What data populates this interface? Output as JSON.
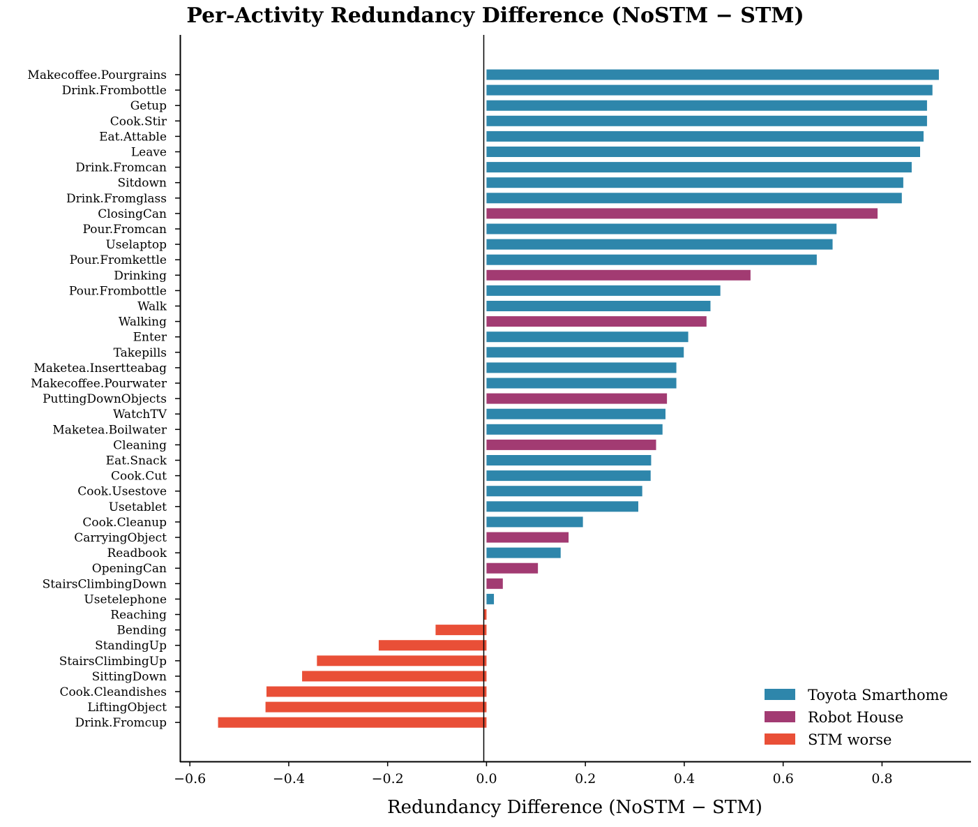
{
  "chart_data": {
    "type": "bar",
    "orientation": "horizontal",
    "title": "Per-Activity Redundancy Difference (NoSTM − STM)",
    "xlabel": "Redundancy Difference (NoSTM − STM)",
    "ylabel": "",
    "xlim": [
      -0.62,
      0.98
    ],
    "xticks": [
      -0.6,
      -0.4,
      -0.2,
      0.0,
      0.2,
      0.4,
      0.6,
      0.8
    ],
    "xtick_labels": [
      "−0.6",
      "−0.4",
      "−0.2",
      "0.0",
      "0.2",
      "0.4",
      "0.6",
      "0.8"
    ],
    "grid": false,
    "legend_position": "lower-right",
    "legend": [
      {
        "key": "toyota",
        "label": "Toyota Smarthome",
        "color": "#2E86AB"
      },
      {
        "key": "robot",
        "label": "Robot House",
        "color": "#A23B72"
      },
      {
        "key": "worse",
        "label": "STM worse",
        "color": "#E94F37"
      }
    ],
    "bars": [
      {
        "label": "Makecoffee.Pourgrains",
        "value": 0.915,
        "group": "toyota"
      },
      {
        "label": "Drink.Frombottle",
        "value": 0.902,
        "group": "toyota"
      },
      {
        "label": "Getup",
        "value": 0.891,
        "group": "toyota"
      },
      {
        "label": "Cook.Stir",
        "value": 0.891,
        "group": "toyota"
      },
      {
        "label": "Eat.Attable",
        "value": 0.884,
        "group": "toyota"
      },
      {
        "label": "Leave",
        "value": 0.877,
        "group": "toyota"
      },
      {
        "label": "Drink.Fromcan",
        "value": 0.86,
        "group": "toyota"
      },
      {
        "label": "Sitdown",
        "value": 0.843,
        "group": "toyota"
      },
      {
        "label": "Drink.Fromglass",
        "value": 0.84,
        "group": "toyota"
      },
      {
        "label": "ClosingCan",
        "value": 0.791,
        "group": "robot"
      },
      {
        "label": "Pour.Fromcan",
        "value": 0.708,
        "group": "toyota"
      },
      {
        "label": "Uselaptop",
        "value": 0.7,
        "group": "toyota"
      },
      {
        "label": "Pour.Fromkettle",
        "value": 0.668,
        "group": "toyota"
      },
      {
        "label": "Drinking",
        "value": 0.534,
        "group": "robot"
      },
      {
        "label": "Pour.Frombottle",
        "value": 0.473,
        "group": "toyota"
      },
      {
        "label": "Walk",
        "value": 0.453,
        "group": "toyota"
      },
      {
        "label": "Walking",
        "value": 0.445,
        "group": "robot"
      },
      {
        "label": "Enter",
        "value": 0.408,
        "group": "toyota"
      },
      {
        "label": "Takepills",
        "value": 0.399,
        "group": "toyota"
      },
      {
        "label": "Maketea.Insertteabag",
        "value": 0.384,
        "group": "toyota"
      },
      {
        "label": "Makecoffee.Pourwater",
        "value": 0.384,
        "group": "toyota"
      },
      {
        "label": "PuttingDownObjects",
        "value": 0.365,
        "group": "robot"
      },
      {
        "label": "WatchTV",
        "value": 0.362,
        "group": "toyota"
      },
      {
        "label": "Maketea.Boilwater",
        "value": 0.356,
        "group": "toyota"
      },
      {
        "label": "Cleaning",
        "value": 0.343,
        "group": "robot"
      },
      {
        "label": "Eat.Snack",
        "value": 0.333,
        "group": "toyota"
      },
      {
        "label": "Cook.Cut",
        "value": 0.332,
        "group": "toyota"
      },
      {
        "label": "Cook.Usestove",
        "value": 0.315,
        "group": "toyota"
      },
      {
        "label": "Usetablet",
        "value": 0.307,
        "group": "toyota"
      },
      {
        "label": "Cook.Cleanup",
        "value": 0.195,
        "group": "toyota"
      },
      {
        "label": "CarryingObject",
        "value": 0.166,
        "group": "robot"
      },
      {
        "label": "Readbook",
        "value": 0.15,
        "group": "toyota"
      },
      {
        "label": "OpeningCan",
        "value": 0.104,
        "group": "robot"
      },
      {
        "label": "StairsClimbingDown",
        "value": 0.033,
        "group": "robot"
      },
      {
        "label": "Usetelephone",
        "value": 0.015,
        "group": "toyota"
      },
      {
        "label": "Reaching",
        "value": -0.005,
        "group": "worse"
      },
      {
        "label": "Bending",
        "value": -0.103,
        "group": "worse"
      },
      {
        "label": "StandingUp",
        "value": -0.218,
        "group": "worse"
      },
      {
        "label": "StairsClimbingUp",
        "value": -0.343,
        "group": "worse"
      },
      {
        "label": "SittingDown",
        "value": -0.373,
        "group": "worse"
      },
      {
        "label": "Cook.Cleandishes",
        "value": -0.445,
        "group": "worse"
      },
      {
        "label": "LiftingObject",
        "value": -0.447,
        "group": "worse"
      },
      {
        "label": "Drink.Fromcup",
        "value": -0.543,
        "group": "worse"
      }
    ]
  }
}
